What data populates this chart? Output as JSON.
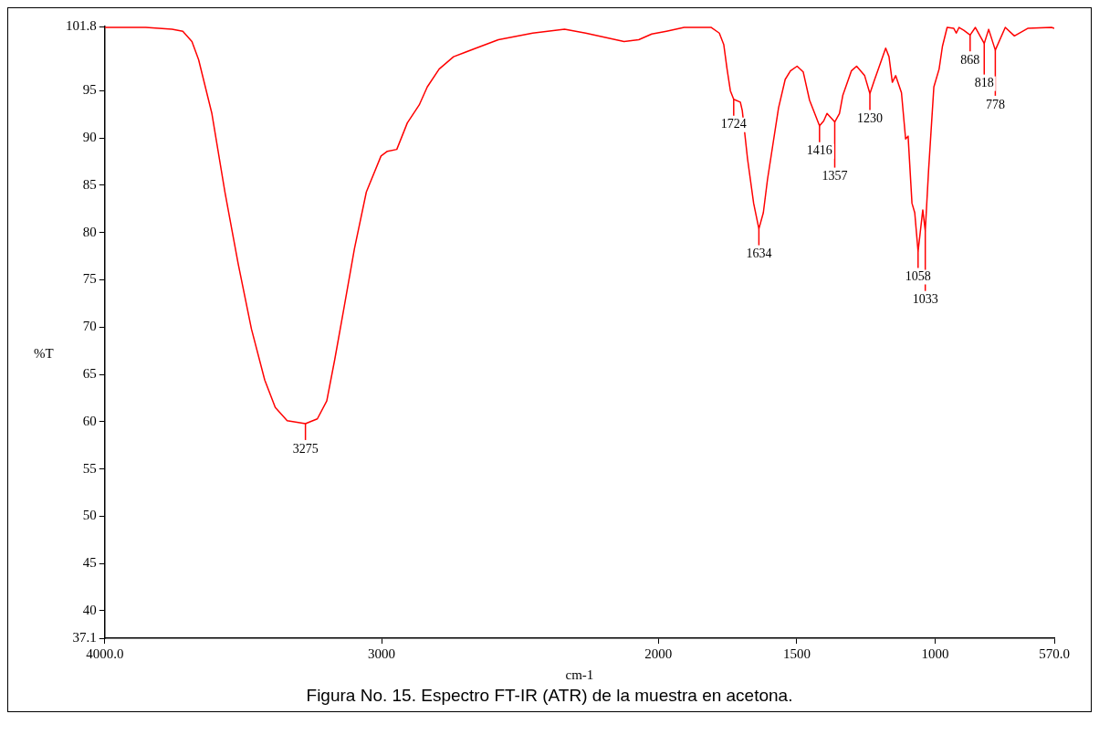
{
  "chart_data": {
    "type": "line",
    "title": "Figura No. 15. Espectro FT-IR (ATR) de la muestra en acetona.",
    "xlabel": "cm-1",
    "ylabel": "%T",
    "legend": false,
    "grid": false,
    "marker": "none",
    "line_style": "solid",
    "xlim": [
      4000,
      570
    ],
    "ylim": [
      37.1,
      101.8
    ],
    "xticks": [
      {
        "value": 4000,
        "label": "4000.0"
      },
      3000,
      2000,
      1500,
      1000,
      {
        "value": 570,
        "label": "570.0"
      }
    ],
    "yticks": [
      37.1,
      40,
      45,
      50,
      55,
      60,
      65,
      70,
      75,
      80,
      85,
      90,
      95,
      101.8
    ],
    "x": [
      4000,
      3852,
      3757,
      3718,
      3685,
      3661,
      3613,
      3566,
      3518,
      3470,
      3422,
      3384,
      3341,
      3275,
      3232,
      3198,
      3169,
      3136,
      3098,
      3055,
      3002,
      2979,
      2945,
      2907,
      2864,
      2835,
      2792,
      2740,
      2659,
      2578,
      2454,
      2339,
      2263,
      2124,
      2071,
      2024,
      1971,
      1907,
      1809,
      1780,
      1764,
      1752,
      1740,
      1728,
      1704,
      1697,
      1678,
      1656,
      1637,
      1621,
      1606,
      1566,
      1542,
      1523,
      1499,
      1477,
      1454,
      1418,
      1403,
      1391,
      1363,
      1346,
      1334,
      1303,
      1284,
      1255,
      1236,
      1220,
      1208,
      1179,
      1167,
      1155,
      1143,
      1122,
      1107,
      1098,
      1084,
      1074,
      1062,
      1045,
      1036,
      1024,
      1005,
      986,
      974,
      957,
      933,
      924,
      914,
      897,
      874,
      855,
      823,
      807,
      783,
      747,
      714,
      666,
      580,
      570
    ],
    "series": [
      {
        "color": "#ff0000",
        "values": [
          101.7,
          101.7,
          101.5,
          101.3,
          100.2,
          98.3,
          92.6,
          84.3,
          76.7,
          69.8,
          64.4,
          61.5,
          60.1,
          59.8,
          60.3,
          62.2,
          66.6,
          72.0,
          78.3,
          84.3,
          88.1,
          88.6,
          88.8,
          91.6,
          93.5,
          95.4,
          97.3,
          98.6,
          99.5,
          100.4,
          101.1,
          101.5,
          101.1,
          100.2,
          100.4,
          101.0,
          101.3,
          101.7,
          101.7,
          101.1,
          99.9,
          97.3,
          95.0,
          94.1,
          93.8,
          92.9,
          87.8,
          83.1,
          80.4,
          82.1,
          85.6,
          93.2,
          96.2,
          97.1,
          97.6,
          97.0,
          94.0,
          91.3,
          91.8,
          92.6,
          91.7,
          92.6,
          94.5,
          97.1,
          97.6,
          96.6,
          94.7,
          96.1,
          97.1,
          99.5,
          98.6,
          95.9,
          96.6,
          94.8,
          89.9,
          90.2,
          83.1,
          82.1,
          78.0,
          82.4,
          80.2,
          86.6,
          95.4,
          97.3,
          99.7,
          101.7,
          101.6,
          101.1,
          101.7,
          101.4,
          100.9,
          101.7,
          100.0,
          101.5,
          99.3,
          101.7,
          100.8,
          101.6,
          101.7,
          101.6
        ]
      }
    ],
    "annotations": [
      {
        "text": "3275",
        "x": 3275,
        "y": 59.8
      },
      {
        "text": "1724",
        "x": 1728,
        "y": 94.1
      },
      {
        "text": "1634",
        "x": 1637,
        "y": 80.4
      },
      {
        "text": "1416",
        "x": 1418,
        "y": 91.3
      },
      {
        "text": "1357",
        "x": 1363,
        "y": 91.7
      },
      {
        "text": "1230",
        "x": 1236,
        "y": 94.7
      },
      {
        "text": "1058",
        "x": 1062,
        "y": 78.0
      },
      {
        "text": "1033",
        "x": 1036,
        "y": 80.2
      },
      {
        "text": "868",
        "x": 874,
        "y": 100.9
      },
      {
        "text": "818",
        "x": 823,
        "y": 100.0
      },
      {
        "text": "778",
        "x": 783,
        "y": 99.3
      }
    ]
  }
}
